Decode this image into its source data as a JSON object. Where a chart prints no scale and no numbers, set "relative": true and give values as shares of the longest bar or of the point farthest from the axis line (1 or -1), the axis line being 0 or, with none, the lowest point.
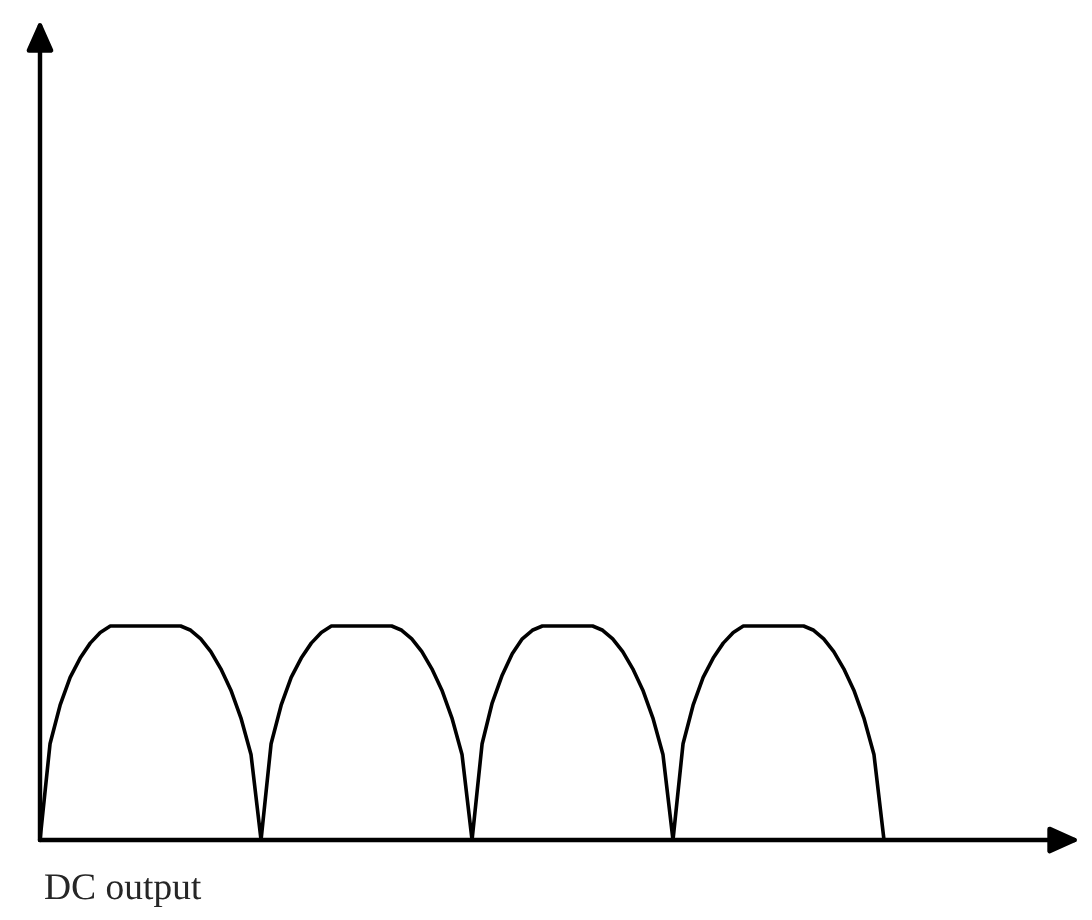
{
  "chart_data": {
    "type": "line",
    "relative": true,
    "legend": false,
    "tick_labels": false,
    "categories": [
      null,
      null,
      null,
      null,
      null,
      null,
      null,
      null,
      null,
      null,
      null,
      null,
      null,
      null,
      null,
      null,
      null,
      null,
      null,
      null,
      null,
      null,
      null,
      null,
      null,
      null,
      null,
      null,
      null,
      null,
      null,
      null,
      null,
      null,
      null,
      null,
      null,
      null,
      null,
      null,
      null,
      null,
      null,
      null,
      null,
      null,
      null,
      null,
      null,
      null,
      null,
      null,
      null,
      null,
      null,
      null,
      null,
      null,
      null,
      null,
      null,
      null,
      null,
      null,
      null,
      null,
      null,
      null,
      null,
      null,
      null,
      null,
      null,
      null,
      null,
      null,
      null,
      null,
      null,
      null,
      null,
      null,
      null,
      null,
      null
    ],
    "series": [
      {
        "color": "#000000",
        "values": [
          0,
          0.45,
          0.63,
          0.76,
          0.85,
          0.92,
          0.97,
          1,
          1,
          1,
          1,
          1,
          1,
          1,
          1,
          0.98,
          0.94,
          0.88,
          0.8,
          0.7,
          0.57,
          0.4,
          0,
          0.45,
          0.63,
          0.76,
          0.85,
          0.92,
          0.97,
          1,
          1,
          1,
          1,
          1,
          1,
          1,
          0.98,
          0.94,
          0.88,
          0.8,
          0.7,
          0.57,
          0.4,
          0,
          0.45,
          0.64,
          0.77,
          0.87,
          0.94,
          0.98,
          1,
          1,
          1,
          1,
          1,
          1,
          0.98,
          0.94,
          0.88,
          0.8,
          0.7,
          0.57,
          0.4,
          0,
          0.45,
          0.63,
          0.76,
          0.85,
          0.92,
          0.97,
          1,
          1,
          1,
          1,
          1,
          1,
          1,
          0.98,
          0.94,
          0.88,
          0.8,
          0.7,
          0.57,
          0.4,
          0
        ]
      }
    ],
    "annotations": [
      "DC output"
    ]
  }
}
